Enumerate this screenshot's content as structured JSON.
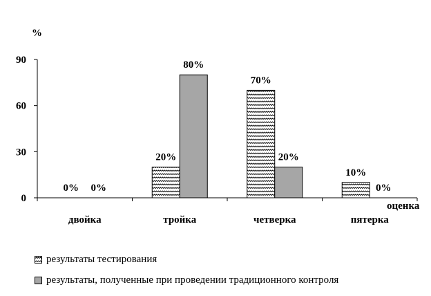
{
  "chart_data": {
    "type": "bar",
    "ylabel": "%",
    "xlabel": "оценка",
    "ylim": [
      0,
      90
    ],
    "yticks": [
      0,
      30,
      60,
      90
    ],
    "categories": [
      "двойка",
      "тройка",
      "четверка",
      "пятерка"
    ],
    "series": [
      {
        "name": "результаты тестирования",
        "values": [
          0,
          20,
          70,
          10
        ],
        "labels": [
          "0%",
          "20%",
          "70%",
          "10%"
        ],
        "fill": "zigzag",
        "color": "#ffffff"
      },
      {
        "name": "результаты, полученные при проведении традиционного контроля",
        "values": [
          0,
          80,
          20,
          0
        ],
        "labels": [
          "0%",
          "80%",
          "20%",
          "0%"
        ],
        "fill": "solid",
        "color": "#a6a6a6"
      }
    ],
    "legend_position": "bottom-left",
    "grid": false
  }
}
